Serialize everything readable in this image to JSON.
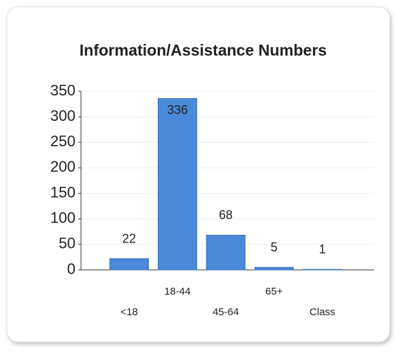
{
  "chart_data": {
    "type": "bar",
    "title": "Information/Assistance Numbers",
    "categories": [
      "<18",
      "18-44",
      "45-64",
      "65+",
      "Class"
    ],
    "values": [
      22,
      336,
      68,
      5,
      1
    ],
    "color": "#4a8ad8",
    "ylim": [
      0,
      350
    ],
    "yticks": [
      0,
      50,
      100,
      150,
      200,
      250,
      300,
      350
    ],
    "grid": true
  }
}
